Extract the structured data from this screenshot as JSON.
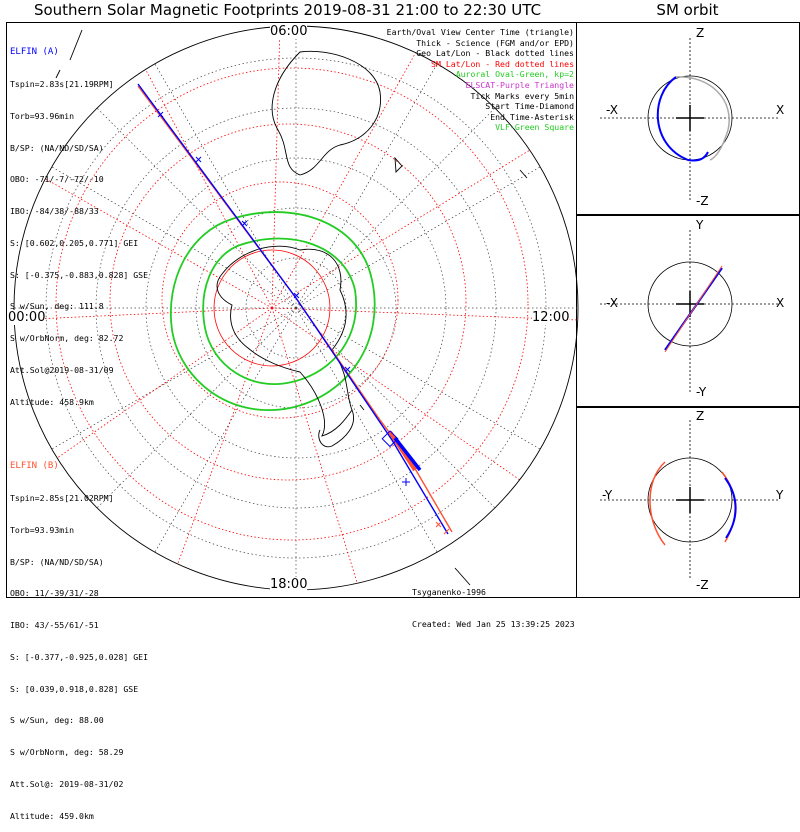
{
  "title": "Southern Solar Magnetic Footprints 2019-08-31 21:00 to 22:30 UTC",
  "orbit_title": "SM orbit",
  "map_labels": {
    "top": "06:00",
    "left": "00:00",
    "right": "12:00",
    "bottom": "18:00"
  },
  "elfin_a": {
    "name": "ELFIN (A)",
    "color": "#0000ff",
    "lines": [
      "Tspin=2.83s[21.19RPM]",
      "Torb=93.96min",
      "B/SP: (NA/ND/SD/SA)",
      "OBO: -71/-7/-72/-10",
      "IBO: -84/38/-88/33",
      "S: [0.602,0.205,0.771] GEI",
      "S: [-0.375,-0.883,0.828] GSE",
      "S w/Sun, deg: 111.8",
      "S w/OrbNorm, deg: 82.72",
      "Att.Sol@2019-08-31/09",
      "Altitude: 458.9km"
    ]
  },
  "elfin_b": {
    "name": "ELFIN (B)",
    "color": "#ff5030",
    "lines": [
      "Tspin=2.85s[21.02RPM]",
      "Torb=93.93min",
      "B/SP: (NA/ND/SD/SA)",
      "OBO: 11/-39/31/-28",
      "IBO: 43/-55/61/-51",
      "S: [-0.377,-0.925,0.028] GEI",
      "S: [0.039,0.918,0.828] GSE",
      "S w/Sun, deg: 88.00",
      "S w/OrbNorm, deg: 58.29",
      "Att.Sol@: 2019-08-31/02",
      "Altitude: 459.0km"
    ]
  },
  "legend": [
    {
      "text": "Earth/Oval View Center Time (triangle)",
      "color": "#000000"
    },
    {
      "text": "Thick - Science (FGM and/or EPD)",
      "color": "#000000"
    },
    {
      "text": "Geo Lat/Lon - Black dotted lines",
      "color": "#000000"
    },
    {
      "text": "SM Lat/Lon - Red dotted lines",
      "color": "#ff0000"
    },
    {
      "text": "Auroral Oval-Green, kp=2",
      "color": "#22cc22"
    },
    {
      "text": "ELSCAT-Purple Triangle",
      "color": "#cc33cc"
    },
    {
      "text": "Tick Marks every 5min",
      "color": "#000000"
    },
    {
      "text": "Start Time-Diamond",
      "color": "#000000"
    },
    {
      "text": "End Time-Asterisk",
      "color": "#000000"
    },
    {
      "text": "VLF-Green Square",
      "color": "#22cc22"
    }
  ],
  "credit": {
    "author": "Tsyganenko-1996",
    "created": "Created: Wed Jan 25 13:39:25 2023"
  },
  "orbit_panels": [
    {
      "top": "Z",
      "bottom": "-Z",
      "left": "-X",
      "right": "X"
    },
    {
      "top": "Y",
      "bottom": "-Y",
      "left": "-X",
      "right": "X"
    },
    {
      "top": "Z",
      "bottom": "-Z",
      "left": "-Y",
      "right": "Y"
    }
  ],
  "colors": {
    "sm_grid": "#ff0000",
    "oval": "#22cc22",
    "elfin_a": "#0000ff",
    "elfin_b": "#ff5030"
  }
}
